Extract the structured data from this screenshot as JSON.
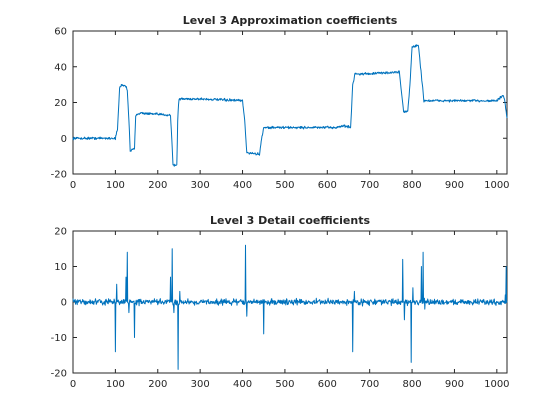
{
  "chart_data": [
    {
      "type": "line",
      "title": "Level 3 Approximation coefficients",
      "xlabel": "",
      "ylabel": "",
      "xlim": [
        0,
        1024
      ],
      "ylim": [
        -20,
        60
      ],
      "xticks": [
        0,
        100,
        200,
        300,
        400,
        500,
        600,
        700,
        800,
        900,
        1000
      ],
      "yticks": [
        -20,
        0,
        20,
        40,
        60
      ],
      "grid": false,
      "series": [
        {
          "color": "#0072bd",
          "noise": 1.0,
          "levels": [
            [
              0,
              0
            ],
            [
              100,
              0
            ],
            [
              105,
              5
            ],
            [
              110,
              28
            ],
            [
              115,
              30
            ],
            [
              125,
              29
            ],
            [
              128,
              27
            ],
            [
              132,
              10
            ],
            [
              135,
              -7
            ],
            [
              145,
              -6
            ],
            [
              148,
              13
            ],
            [
              155,
              14
            ],
            [
              165,
              14
            ],
            [
              190,
              13.5
            ],
            [
              230,
              13
            ],
            [
              233,
              0
            ],
            [
              236,
              -15
            ],
            [
              245,
              -15
            ],
            [
              247,
              10
            ],
            [
              250,
              22
            ],
            [
              270,
              22
            ],
            [
              300,
              22
            ],
            [
              400,
              21
            ],
            [
              405,
              10
            ],
            [
              410,
              -8
            ],
            [
              440,
              -9
            ],
            [
              445,
              0
            ],
            [
              450,
              6
            ],
            [
              500,
              6
            ],
            [
              550,
              6
            ],
            [
              620,
              6
            ],
            [
              640,
              7
            ],
            [
              655,
              6
            ],
            [
              660,
              30
            ],
            [
              665,
              36
            ],
            [
              690,
              36
            ],
            [
              770,
              37
            ],
            [
              775,
              26
            ],
            [
              780,
              15
            ],
            [
              790,
              15
            ],
            [
              795,
              30
            ],
            [
              800,
              51
            ],
            [
              815,
              52
            ],
            [
              820,
              40
            ],
            [
              828,
              21
            ],
            [
              860,
              21
            ],
            [
              900,
              21
            ],
            [
              1000,
              21
            ],
            [
              1015,
              24
            ],
            [
              1018,
              22
            ],
            [
              1024,
              11
            ]
          ]
        }
      ]
    },
    {
      "type": "line",
      "title": "Level 3 Detail coefficients",
      "xlabel": "",
      "ylabel": "",
      "xlim": [
        0,
        1024
      ],
      "ylim": [
        -20,
        20
      ],
      "xticks": [
        0,
        100,
        200,
        300,
        400,
        500,
        600,
        700,
        800,
        900,
        1000
      ],
      "yticks": [
        -20,
        -10,
        0,
        10,
        20
      ],
      "grid": false,
      "series": [
        {
          "color": "#0072bd",
          "noise": 1.0,
          "spikes": [
            [
              100,
              -14
            ],
            [
              103,
              5
            ],
            [
              125,
              7
            ],
            [
              128,
              14
            ],
            [
              132,
              -3
            ],
            [
              145,
              -10
            ],
            [
              230,
              7
            ],
            [
              234,
              15
            ],
            [
              238,
              -3
            ],
            [
              248,
              -19
            ],
            [
              252,
              3
            ],
            [
              407,
              16
            ],
            [
              410,
              -4
            ],
            [
              450,
              -9
            ],
            [
              660,
              -14
            ],
            [
              664,
              3
            ],
            [
              778,
              12
            ],
            [
              782,
              -5
            ],
            [
              798,
              -17
            ],
            [
              802,
              4
            ],
            [
              822,
              10
            ],
            [
              826,
              14
            ],
            [
              830,
              -2
            ],
            [
              1020,
              2
            ],
            [
              1022,
              10
            ]
          ]
        }
      ]
    }
  ]
}
